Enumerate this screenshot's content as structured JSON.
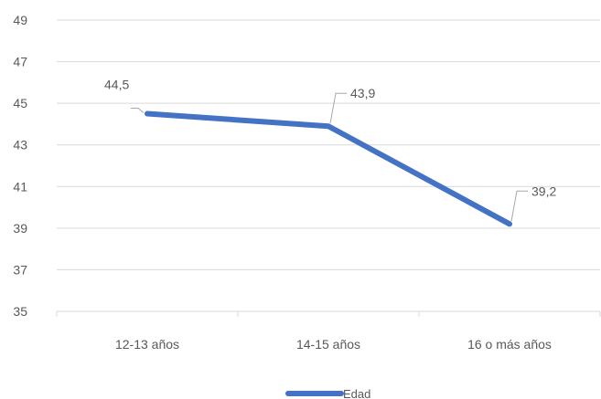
{
  "chart_data": {
    "type": "line",
    "categories": [
      "12-13 años",
      "14-15 años",
      "16 o más años"
    ],
    "series": [
      {
        "name": "Edad",
        "values": [
          44.5,
          43.9,
          39.2
        ],
        "value_labels": [
          "44,5",
          "43,9",
          "39,2"
        ],
        "color": "#4472C4"
      }
    ],
    "ylim": [
      35,
      49
    ],
    "yticks": [
      35,
      37,
      39,
      41,
      43,
      45,
      47,
      49
    ],
    "grid": true,
    "legend": "bottom",
    "data_labels": true
  }
}
